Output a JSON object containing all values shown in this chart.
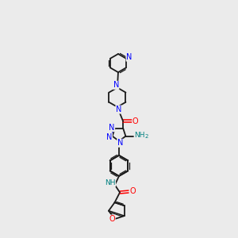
{
  "background_color": "#ebebeb",
  "bond_color": "#1a1a1a",
  "nitrogen_color": "#0000ff",
  "oxygen_color": "#ff0000",
  "nh_color": "#008080",
  "fig_width": 3.0,
  "fig_height": 3.0,
  "dpi": 100,
  "xlim": [
    0,
    10
  ],
  "ylim": [
    0,
    14
  ]
}
